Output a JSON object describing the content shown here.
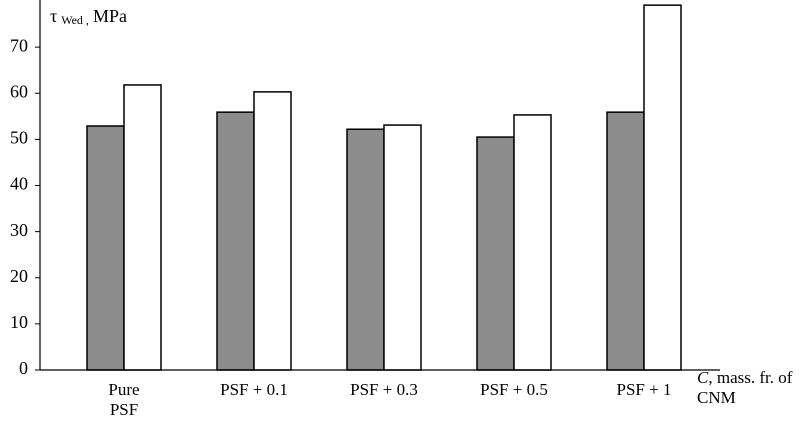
{
  "chart_data": {
    "type": "bar",
    "y_label": {
      "symbol": "τ",
      "subscript": "Wed ,",
      "unit": "MPa"
    },
    "x_label": {
      "symbol": "C",
      "text": ", mass. fr. of CNM"
    },
    "categories": [
      "Pure PSF",
      "PSF + 0.1",
      "PSF + 0.3",
      "PSF + 0.5",
      "PSF + 1"
    ],
    "series": [
      {
        "color": "#8c8c8c",
        "values": [
          52.9,
          55.9,
          52.2,
          50.5,
          55.9
        ]
      },
      {
        "color": "#ffffff",
        "values": [
          61.8,
          60.3,
          53.1,
          55.3,
          79.1
        ]
      }
    ],
    "ylim": [
      0,
      80
    ],
    "yticks": [
      0,
      10,
      20,
      30,
      40,
      50,
      60,
      70
    ]
  }
}
